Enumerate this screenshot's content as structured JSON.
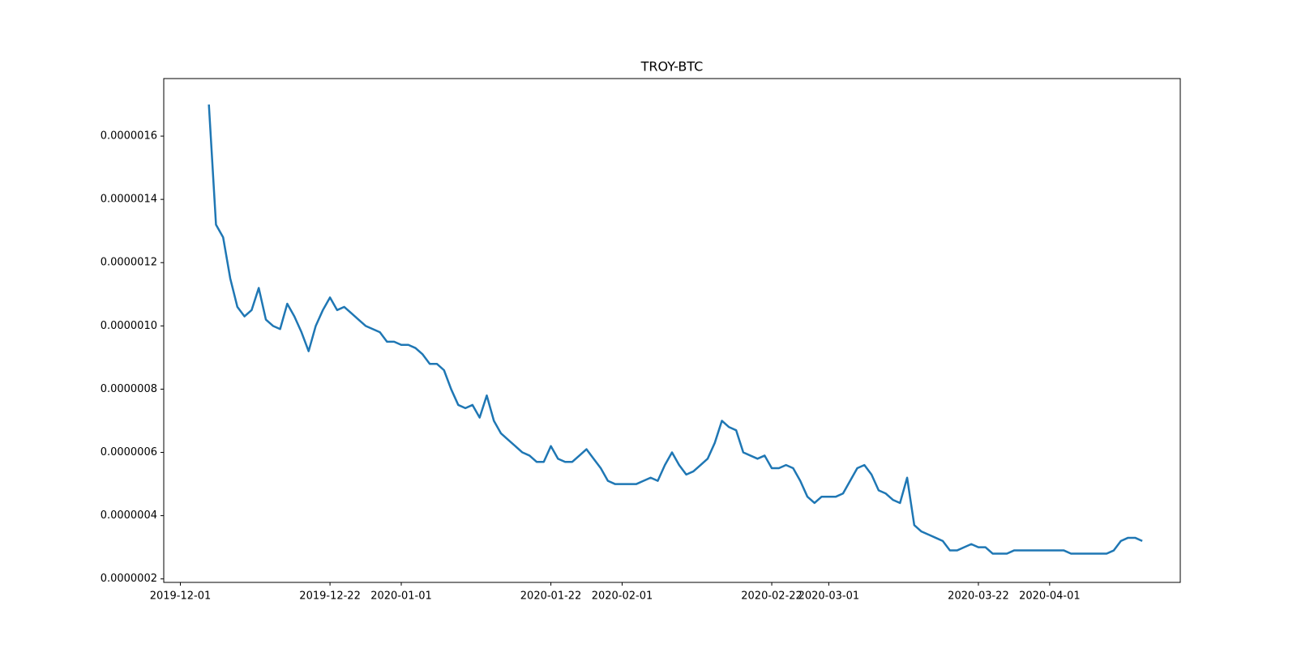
{
  "chart_data": {
    "type": "line",
    "title": "TROY-BTC",
    "x": [
      "2019-12-05",
      "2019-12-06",
      "2019-12-07",
      "2019-12-08",
      "2019-12-09",
      "2019-12-10",
      "2019-12-11",
      "2019-12-12",
      "2019-12-13",
      "2019-12-14",
      "2019-12-15",
      "2019-12-16",
      "2019-12-17",
      "2019-12-18",
      "2019-12-19",
      "2019-12-20",
      "2019-12-21",
      "2019-12-22",
      "2019-12-23",
      "2019-12-24",
      "2019-12-25",
      "2019-12-26",
      "2019-12-27",
      "2019-12-28",
      "2019-12-29",
      "2019-12-30",
      "2019-12-31",
      "2020-01-01",
      "2020-01-02",
      "2020-01-03",
      "2020-01-04",
      "2020-01-05",
      "2020-01-06",
      "2020-01-07",
      "2020-01-08",
      "2020-01-09",
      "2020-01-10",
      "2020-01-11",
      "2020-01-12",
      "2020-01-13",
      "2020-01-14",
      "2020-01-15",
      "2020-01-16",
      "2020-01-17",
      "2020-01-18",
      "2020-01-19",
      "2020-01-20",
      "2020-01-21",
      "2020-01-22",
      "2020-01-23",
      "2020-01-24",
      "2020-01-25",
      "2020-01-26",
      "2020-01-27",
      "2020-01-28",
      "2020-01-29",
      "2020-01-30",
      "2020-01-31",
      "2020-02-01",
      "2020-02-02",
      "2020-02-03",
      "2020-02-04",
      "2020-02-05",
      "2020-02-06",
      "2020-02-07",
      "2020-02-08",
      "2020-02-09",
      "2020-02-10",
      "2020-02-11",
      "2020-02-12",
      "2020-02-13",
      "2020-02-14",
      "2020-02-15",
      "2020-02-16",
      "2020-02-17",
      "2020-02-18",
      "2020-02-19",
      "2020-02-20",
      "2020-02-21",
      "2020-02-22",
      "2020-02-23",
      "2020-02-24",
      "2020-02-25",
      "2020-02-26",
      "2020-02-27",
      "2020-02-28",
      "2020-02-29",
      "2020-03-01",
      "2020-03-02",
      "2020-03-03",
      "2020-03-04",
      "2020-03-05",
      "2020-03-06",
      "2020-03-07",
      "2020-03-08",
      "2020-03-09",
      "2020-03-10",
      "2020-03-11",
      "2020-03-12",
      "2020-03-13",
      "2020-03-14",
      "2020-03-15",
      "2020-03-16",
      "2020-03-17",
      "2020-03-18",
      "2020-03-19",
      "2020-03-20",
      "2020-03-21",
      "2020-03-22",
      "2020-03-23",
      "2020-03-24",
      "2020-03-25",
      "2020-03-26",
      "2020-03-27",
      "2020-03-28",
      "2020-03-29",
      "2020-03-30",
      "2020-03-31",
      "2020-04-01",
      "2020-04-02",
      "2020-04-03",
      "2020-04-04",
      "2020-04-05",
      "2020-04-06",
      "2020-04-07",
      "2020-04-08",
      "2020-04-09",
      "2020-04-10",
      "2020-04-11",
      "2020-04-12",
      "2020-04-13",
      "2020-04-14"
    ],
    "series": [
      {
        "name": "TROY-BTC",
        "color": "#1f77b4",
        "values": [
          1.7e-06,
          1.32e-06,
          1.28e-06,
          1.15e-06,
          1.06e-06,
          1.03e-06,
          1.05e-06,
          1.12e-06,
          1.02e-06,
          1e-06,
          9.9e-07,
          1.07e-06,
          1.03e-06,
          9.8e-07,
          9.2e-07,
          1e-06,
          1.05e-06,
          1.09e-06,
          1.05e-06,
          1.06e-06,
          1.04e-06,
          1.02e-06,
          1e-06,
          9.9e-07,
          9.8e-07,
          9.5e-07,
          9.5e-07,
          9.4e-07,
          9.4e-07,
          9.3e-07,
          9.1e-07,
          8.8e-07,
          8.8e-07,
          8.6e-07,
          8e-07,
          7.5e-07,
          7.4e-07,
          7.5e-07,
          7.1e-07,
          7.8e-07,
          7e-07,
          6.6e-07,
          6.4e-07,
          6.2e-07,
          6e-07,
          5.9e-07,
          5.7e-07,
          5.7e-07,
          6.2e-07,
          5.8e-07,
          5.7e-07,
          5.7e-07,
          5.9e-07,
          6.1e-07,
          5.8e-07,
          5.5e-07,
          5.1e-07,
          5e-07,
          5e-07,
          5e-07,
          5e-07,
          5.1e-07,
          5.2e-07,
          5.1e-07,
          5.6e-07,
          6e-07,
          5.6e-07,
          5.3e-07,
          5.4e-07,
          5.6e-07,
          5.8e-07,
          6.3e-07,
          7e-07,
          6.8e-07,
          6.7e-07,
          6e-07,
          5.9e-07,
          5.8e-07,
          5.9e-07,
          5.5e-07,
          5.5e-07,
          5.6e-07,
          5.5e-07,
          5.1e-07,
          4.6e-07,
          4.4e-07,
          4.6e-07,
          4.6e-07,
          4.6e-07,
          4.7e-07,
          5.1e-07,
          5.5e-07,
          5.6e-07,
          5.3e-07,
          4.8e-07,
          4.7e-07,
          4.5e-07,
          4.4e-07,
          5.2e-07,
          3.7e-07,
          3.5e-07,
          3.4e-07,
          3.3e-07,
          3.2e-07,
          2.9e-07,
          2.9e-07,
          3e-07,
          3.1e-07,
          3e-07,
          3e-07,
          2.8e-07,
          2.8e-07,
          2.8e-07,
          2.9e-07,
          2.9e-07,
          2.9e-07,
          2.9e-07,
          2.9e-07,
          2.9e-07,
          2.9e-07,
          2.9e-07,
          2.8e-07,
          2.8e-07,
          2.8e-07,
          2.8e-07,
          2.8e-07,
          2.8e-07,
          2.9e-07,
          3.2e-07,
          3.3e-07,
          3.3e-07,
          3.2e-07
        ]
      }
    ],
    "xlim": [
      "2019-11-28T16:00:00Z",
      "2020-04-19T08:00:00Z"
    ],
    "xticks": [
      "2019-12-01",
      "2019-12-22",
      "2020-01-01",
      "2020-01-22",
      "2020-02-01",
      "2020-02-22",
      "2020-03-01",
      "2020-03-22",
      "2020-04-01"
    ],
    "ylim": [
      1.89e-07,
      1.782e-06
    ],
    "yticks": [
      {
        "value": 2e-07,
        "label": "0.0000002"
      },
      {
        "value": 4e-07,
        "label": "0.0000004"
      },
      {
        "value": 6e-07,
        "label": "0.0000006"
      },
      {
        "value": 8e-07,
        "label": "0.0000008"
      },
      {
        "value": 1e-06,
        "label": "0.0000010"
      },
      {
        "value": 1.2e-06,
        "label": "0.0000012"
      },
      {
        "value": 1.4e-06,
        "label": "0.0000014"
      },
      {
        "value": 1.6e-06,
        "label": "0.0000016"
      }
    ],
    "grid": false
  }
}
